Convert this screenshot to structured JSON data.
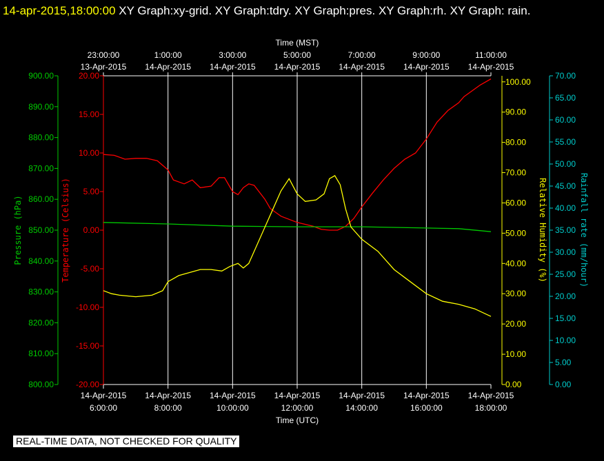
{
  "header": {
    "timestamp": "14-apr-2015,18:00:00",
    "graphs": "  XY Graph:xy-grid.  XY Graph:tdry.  XY Graph:pres.  XY Graph:rh.  XY Graph: rain."
  },
  "banner": "REAL-TIME DATA, NOT CHECKED FOR QUALITY",
  "colors": {
    "pressure": "#00cc00",
    "temperature": "#ff0000",
    "humidity": "#ffff00",
    "rain": "#00cccc",
    "grid": "#ffffff",
    "bg": "#000000"
  },
  "chart_data": {
    "type": "line",
    "top_axis": {
      "label": "Time (MST)",
      "ticks": [
        {
          "time": "23:00:00",
          "date": "13-Apr-2015"
        },
        {
          "time": "1:00:00",
          "date": "14-Apr-2015"
        },
        {
          "time": "3:00:00",
          "date": "14-Apr-2015"
        },
        {
          "time": "5:00:00",
          "date": "14-Apr-2015"
        },
        {
          "time": "7:00:00",
          "date": "14-Apr-2015"
        },
        {
          "time": "9:00:00",
          "date": "14-Apr-2015"
        },
        {
          "time": "11:00:00",
          "date": "14-Apr-2015"
        }
      ]
    },
    "bottom_axis": {
      "label": "Time (UTC)",
      "range": [
        "2015-04-14 06:00",
        "2015-04-14 18:00"
      ],
      "ticks": [
        {
          "date": "14-Apr-2015",
          "time": "6:00:00"
        },
        {
          "date": "14-Apr-2015",
          "time": "8:00:00"
        },
        {
          "date": "14-Apr-2015",
          "time": "10:00:00"
        },
        {
          "date": "14-Apr-2015",
          "time": "12:00:00"
        },
        {
          "date": "14-Apr-2015",
          "time": "14:00:00"
        },
        {
          "date": "14-Apr-2015",
          "time": "16:00:00"
        },
        {
          "date": "14-Apr-2015",
          "time": "18:00:00"
        }
      ]
    },
    "axes": {
      "pressure": {
        "label": "Pressure (hPa)",
        "range": [
          800,
          900
        ],
        "ticks": [
          "800.00",
          "810.00",
          "820.00",
          "830.00",
          "840.00",
          "850.00",
          "860.00",
          "870.00",
          "880.00",
          "890.00",
          "900.00"
        ]
      },
      "temperature": {
        "label": "Temperature (Celsius)",
        "range": [
          -20,
          20
        ],
        "ticks": [
          "-20.00",
          "-15.00",
          "-10.00",
          "-5.00",
          "0.00",
          "5.00",
          "10.00",
          "15.00",
          "20.00"
        ]
      },
      "humidity": {
        "label": "Relative Humidity (%)",
        "range": [
          0,
          102
        ],
        "ticks": [
          "0.00",
          "10.00",
          "20.00",
          "30.00",
          "40.00",
          "50.00",
          "60.00",
          "70.00",
          "80.00",
          "90.00",
          "100.00"
        ]
      },
      "rain": {
        "label": "Rainfall rate (mm/hour)",
        "range": [
          0,
          70
        ],
        "ticks": [
          "0.00",
          "5.00",
          "10.00",
          "15.00",
          "20.00",
          "25.00",
          "30.00",
          "35.00",
          "40.00",
          "45.00",
          "50.00",
          "55.00",
          "60.00",
          "65.00",
          "70.00"
        ]
      }
    },
    "series": [
      {
        "key": "temperature",
        "axis": "temperature",
        "points": [
          [
            "2015-04-14 06:00",
            9.8
          ],
          [
            "2015-04-14 06:20",
            9.7
          ],
          [
            "2015-04-14 06:40",
            9.2
          ],
          [
            "2015-04-14 07:00",
            9.3
          ],
          [
            "2015-04-14 07:20",
            9.3
          ],
          [
            "2015-04-14 07:40",
            9.0
          ],
          [
            "2015-04-14 08:00",
            7.8
          ],
          [
            "2015-04-14 08:10",
            6.5
          ],
          [
            "2015-04-14 08:30",
            6.0
          ],
          [
            "2015-04-14 08:45",
            6.5
          ],
          [
            "2015-04-14 09:00",
            5.5
          ],
          [
            "2015-04-14 09:20",
            5.7
          ],
          [
            "2015-04-14 09:35",
            6.8
          ],
          [
            "2015-04-14 09:45",
            6.8
          ],
          [
            "2015-04-14 10:00",
            5.0
          ],
          [
            "2015-04-14 10:10",
            4.6
          ],
          [
            "2015-04-14 10:20",
            5.5
          ],
          [
            "2015-04-14 10:30",
            6.0
          ],
          [
            "2015-04-14 10:40",
            5.8
          ],
          [
            "2015-04-14 11:00",
            4.0
          ],
          [
            "2015-04-14 11:10",
            2.8
          ],
          [
            "2015-04-14 11:30",
            1.8
          ],
          [
            "2015-04-14 12:00",
            1.0
          ],
          [
            "2015-04-14 12:30",
            0.5
          ],
          [
            "2015-04-14 12:45",
            0.1
          ],
          [
            "2015-04-14 13:00",
            0.0
          ],
          [
            "2015-04-14 13:15",
            0.0
          ],
          [
            "2015-04-14 13:30",
            0.5
          ],
          [
            "2015-04-14 13:45",
            1.5
          ],
          [
            "2015-04-14 14:00",
            3.0
          ],
          [
            "2015-04-14 14:20",
            4.8
          ],
          [
            "2015-04-14 14:40",
            6.5
          ],
          [
            "2015-04-14 15:00",
            8.0
          ],
          [
            "2015-04-14 15:20",
            9.2
          ],
          [
            "2015-04-14 15:40",
            10.0
          ],
          [
            "2015-04-14 16:00",
            11.8
          ],
          [
            "2015-04-14 16:20",
            14.0
          ],
          [
            "2015-04-14 16:40",
            15.5
          ],
          [
            "2015-04-14 17:00",
            16.5
          ],
          [
            "2015-04-14 17:10",
            17.3
          ],
          [
            "2015-04-14 17:20",
            17.8
          ],
          [
            "2015-04-14 17:40",
            18.8
          ],
          [
            "2015-04-14 18:00",
            19.6
          ]
        ]
      },
      {
        "key": "pressure",
        "axis": "pressure",
        "points": [
          [
            "2015-04-14 06:00",
            852.5
          ],
          [
            "2015-04-14 08:00",
            852.0
          ],
          [
            "2015-04-14 10:00",
            851.3
          ],
          [
            "2015-04-14 12:00",
            851.1
          ],
          [
            "2015-04-14 14:00",
            851.1
          ],
          [
            "2015-04-14 16:00",
            850.7
          ],
          [
            "2015-04-14 17:00",
            850.5
          ],
          [
            "2015-04-14 18:00",
            849.5
          ]
        ]
      },
      {
        "key": "humidity",
        "axis": "humidity",
        "points": [
          [
            "2015-04-14 06:00",
            31
          ],
          [
            "2015-04-14 06:15",
            30
          ],
          [
            "2015-04-14 06:30",
            29.5
          ],
          [
            "2015-04-14 07:00",
            29
          ],
          [
            "2015-04-14 07:30",
            29.5
          ],
          [
            "2015-04-14 07:50",
            31
          ],
          [
            "2015-04-14 08:00",
            34
          ],
          [
            "2015-04-14 08:20",
            36
          ],
          [
            "2015-04-14 08:40",
            37
          ],
          [
            "2015-04-14 09:00",
            38
          ],
          [
            "2015-04-14 09:20",
            38
          ],
          [
            "2015-04-14 09:40",
            37.5
          ],
          [
            "2015-04-14 09:55",
            39
          ],
          [
            "2015-04-14 10:10",
            40
          ],
          [
            "2015-04-14 10:20",
            38.5
          ],
          [
            "2015-04-14 10:30",
            40
          ],
          [
            "2015-04-14 10:45",
            46
          ],
          [
            "2015-04-14 11:00",
            52
          ],
          [
            "2015-04-14 11:15",
            58
          ],
          [
            "2015-04-14 11:30",
            64
          ],
          [
            "2015-04-14 11:45",
            68
          ],
          [
            "2015-04-14 12:00",
            63
          ],
          [
            "2015-04-14 12:15",
            60.5
          ],
          [
            "2015-04-14 12:35",
            61
          ],
          [
            "2015-04-14 12:50",
            63
          ],
          [
            "2015-04-14 13:00",
            68
          ],
          [
            "2015-04-14 13:10",
            69
          ],
          [
            "2015-04-14 13:20",
            66
          ],
          [
            "2015-04-14 13:30",
            58
          ],
          [
            "2015-04-14 13:40",
            52
          ],
          [
            "2015-04-14 14:00",
            48
          ],
          [
            "2015-04-14 14:30",
            44
          ],
          [
            "2015-04-14 15:00",
            38
          ],
          [
            "2015-04-14 15:30",
            34
          ],
          [
            "2015-04-14 16:00",
            30
          ],
          [
            "2015-04-14 16:30",
            27.5
          ],
          [
            "2015-04-14 17:00",
            26.5
          ],
          [
            "2015-04-14 17:30",
            25
          ],
          [
            "2015-04-14 18:00",
            22.5
          ]
        ]
      },
      {
        "key": "rain",
        "axis": "rain",
        "points": []
      }
    ]
  }
}
